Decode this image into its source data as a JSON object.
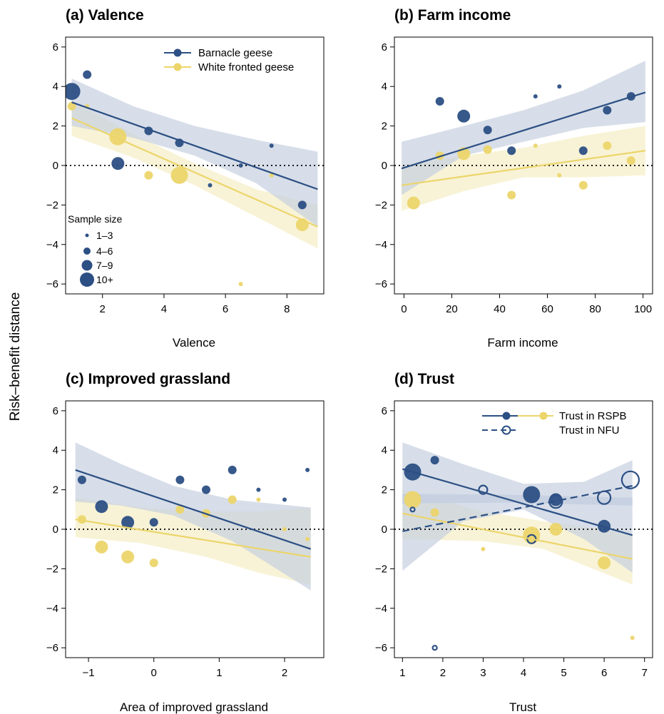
{
  "figure": {
    "shared_ylabel": "Risk–benefit distance",
    "colors": {
      "barnacle": "#2c4f84",
      "white_fronted": "#ecd56b",
      "barnacle_band": "#c6d0e0",
      "white_band": "#f7f1cf"
    },
    "size_legend": {
      "title": "Sample size",
      "labels": [
        "1–3",
        "4–6",
        "7–9",
        "10+"
      ]
    },
    "legend_a": {
      "barnacle": "Barnacle geese",
      "white": "White fronted geese"
    },
    "legend_d": {
      "rspb": "Trust in RSPB",
      "nfu": "Trust in NFU"
    }
  },
  "chart_data": [
    {
      "id": "a",
      "type": "scatter",
      "title": "(a) Valence",
      "xlabel": "Valence",
      "ylabel": "Risk–benefit distance",
      "xlim": [
        0.8,
        9.2
      ],
      "ylim": [
        -6.5,
        6.5
      ],
      "xticks": [
        2,
        4,
        6,
        8
      ],
      "yticks": [
        -6,
        -4,
        -2,
        0,
        2,
        4,
        6
      ],
      "reference_line": 0,
      "legend_position": "top-right",
      "series": [
        {
          "name": "Barnacle geese",
          "color": "barnacle",
          "points": [
            [
              1.0,
              3.75,
              4
            ],
            [
              1.5,
              4.6,
              2
            ],
            [
              2.5,
              0.1,
              3
            ],
            [
              3.5,
              1.75,
              2
            ],
            [
              4.5,
              1.15,
              2
            ],
            [
              5.5,
              -1.0,
              1
            ],
            [
              6.5,
              0.0,
              1
            ],
            [
              7.5,
              1.0,
              1
            ],
            [
              8.5,
              -2.0,
              2
            ]
          ],
          "fit": {
            "x": [
              1.0,
              9.0
            ],
            "y": [
              3.2,
              -1.2
            ]
          },
          "band": [
            [
              1.0,
              4.4,
              2.0
            ],
            [
              3.0,
              3.0,
              1.4
            ],
            [
              5.0,
              2.0,
              0.5
            ],
            [
              7.0,
              1.3,
              -0.9
            ],
            [
              9.0,
              0.7,
              -3.1
            ]
          ]
        },
        {
          "name": "White fronted geese",
          "color": "white_fronted",
          "points": [
            [
              1.0,
              3.0,
              2
            ],
            [
              1.5,
              3.0,
              1
            ],
            [
              2.5,
              1.45,
              4
            ],
            [
              3.5,
              -0.5,
              2
            ],
            [
              4.5,
              -0.5,
              4
            ],
            [
              6.5,
              -6.0,
              1
            ],
            [
              7.5,
              -0.5,
              1
            ],
            [
              8.5,
              -3.0,
              3
            ]
          ],
          "fit": {
            "x": [
              1.0,
              9.0
            ],
            "y": [
              2.4,
              -3.1
            ]
          },
          "band": [
            [
              1.0,
              3.3,
              1.5
            ],
            [
              3.0,
              1.6,
              0.4
            ],
            [
              5.0,
              0.1,
              -1.0
            ],
            [
              7.0,
              -1.2,
              -2.6
            ],
            [
              9.0,
              -2.0,
              -4.2
            ]
          ]
        }
      ]
    },
    {
      "id": "b",
      "type": "scatter",
      "title": "(b) Farm income",
      "xlabel": "Farm income",
      "ylabel": "",
      "xlim": [
        -4,
        104
      ],
      "ylim": [
        -6.5,
        6.5
      ],
      "xticks": [
        0,
        20,
        40,
        60,
        80,
        100
      ],
      "yticks": [
        -6,
        -4,
        -2,
        0,
        2,
        4,
        6
      ],
      "reference_line": 0,
      "series": [
        {
          "name": "Barnacle geese",
          "color": "barnacle",
          "points": [
            [
              15,
              3.25,
              2
            ],
            [
              25,
              2.5,
              3
            ],
            [
              35,
              1.8,
              2
            ],
            [
              45,
              0.75,
              2
            ],
            [
              55,
              3.5,
              1
            ],
            [
              65,
              4.0,
              1
            ],
            [
              75,
              0.75,
              2
            ],
            [
              85,
              2.8,
              2
            ],
            [
              95,
              3.5,
              2
            ]
          ],
          "fit": {
            "x": [
              -1,
              101
            ],
            "y": [
              -0.15,
              3.7
            ]
          },
          "band": [
            [
              -1,
              1.2,
              -1.5
            ],
            [
              25,
              2.0,
              0.5
            ],
            [
              50,
              2.8,
              1.2
            ],
            [
              75,
              3.8,
              1.9
            ],
            [
              101,
              5.3,
              2.2
            ]
          ]
        },
        {
          "name": "White fronted geese",
          "color": "white_fronted",
          "points": [
            [
              4,
              -1.9,
              3
            ],
            [
              15,
              0.5,
              2
            ],
            [
              25,
              0.6,
              3
            ],
            [
              35,
              0.8,
              2
            ],
            [
              45,
              -1.5,
              2
            ],
            [
              55,
              1.0,
              1
            ],
            [
              65,
              -0.5,
              1
            ],
            [
              75,
              -1.0,
              2
            ],
            [
              85,
              1.0,
              2
            ],
            [
              95,
              0.25,
              2
            ]
          ],
          "fit": {
            "x": [
              -1,
              101
            ],
            "y": [
              -1.0,
              0.75
            ]
          },
          "band": [
            [
              -1,
              0.0,
              -2.3
            ],
            [
              25,
              0.5,
              -1.3
            ],
            [
              50,
              0.9,
              -0.6
            ],
            [
              75,
              1.5,
              -0.6
            ],
            [
              101,
              2.0,
              -0.5
            ]
          ]
        }
      ]
    },
    {
      "id": "c",
      "type": "scatter",
      "title": "(c) Improved grassland",
      "xlabel": "Area of improved grassland",
      "ylabel": "",
      "xlim": [
        -1.35,
        2.6
      ],
      "ylim": [
        -6.5,
        6.5
      ],
      "xticks": [
        -1,
        0,
        1,
        2
      ],
      "yticks": [
        -6,
        -4,
        -2,
        0,
        2,
        4,
        6
      ],
      "reference_line": 0,
      "series": [
        {
          "name": "Barnacle geese",
          "color": "barnacle",
          "points": [
            [
              -1.1,
              2.5,
              2
            ],
            [
              -0.8,
              1.15,
              3
            ],
            [
              -0.4,
              0.35,
              3
            ],
            [
              0.0,
              0.35,
              2
            ],
            [
              0.4,
              2.5,
              2
            ],
            [
              0.8,
              2.0,
              2
            ],
            [
              1.2,
              3.0,
              2
            ],
            [
              1.6,
              2.0,
              1
            ],
            [
              2.0,
              1.5,
              1
            ],
            [
              2.35,
              3.0,
              1
            ]
          ],
          "fit": {
            "x": [
              -1.2,
              2.4
            ],
            "y": [
              3.0,
              -1.0
            ]
          },
          "band": [
            [
              -1.2,
              4.4,
              1.4
            ],
            [
              -0.5,
              3.3,
              1.2
            ],
            [
              0.3,
              2.2,
              0.7
            ],
            [
              1.2,
              1.5,
              -0.6
            ],
            [
              2.4,
              1.1,
              -3.1
            ]
          ]
        },
        {
          "name": "White fronted geese",
          "color": "white_fronted",
          "points": [
            [
              -1.1,
              0.5,
              2
            ],
            [
              -0.8,
              -0.9,
              3
            ],
            [
              -0.4,
              -1.4,
              3
            ],
            [
              0.0,
              -1.7,
              2
            ],
            [
              0.4,
              1.0,
              2
            ],
            [
              0.8,
              0.8,
              2
            ],
            [
              1.2,
              1.5,
              2
            ],
            [
              1.6,
              1.5,
              1
            ],
            [
              2.0,
              0.0,
              1
            ],
            [
              2.35,
              -0.5,
              1
            ]
          ],
          "fit": {
            "x": [
              -1.2,
              2.4
            ],
            "y": [
              0.5,
              -1.4
            ]
          },
          "band": [
            [
              -1.2,
              1.6,
              -0.4
            ],
            [
              -0.2,
              1.1,
              -0.7
            ],
            [
              0.8,
              0.9,
              -1.4
            ],
            [
              1.6,
              0.9,
              -2.2
            ],
            [
              2.4,
              1.1,
              -2.8
            ]
          ]
        }
      ]
    },
    {
      "id": "d",
      "type": "scatter",
      "title": "(d) Trust",
      "xlabel": "Trust",
      "ylabel": "",
      "xlim": [
        0.8,
        7.2
      ],
      "ylim": [
        -6.5,
        6.5
      ],
      "xticks": [
        1,
        2,
        3,
        4,
        5,
        6,
        7
      ],
      "yticks": [
        -6,
        -4,
        -2,
        0,
        2,
        4,
        6
      ],
      "reference_line": 0,
      "legend_position": "top-right",
      "series": [
        {
          "name": "Trust in RSPB",
          "color": "barnacle",
          "points": [
            [
              1.25,
              2.9,
              4
            ],
            [
              1.8,
              3.5,
              2
            ],
            [
              4.2,
              1.75,
              4
            ],
            [
              4.8,
              1.5,
              3
            ],
            [
              6.0,
              0.15,
              3
            ]
          ],
          "fit": {
            "x": [
              1.0,
              6.7
            ],
            "y": [
              3.05,
              -0.3
            ]
          },
          "band": [
            [
              1.0,
              4.4,
              -2.1
            ],
            [
              2.5,
              3.3,
              0.4
            ],
            [
              4.0,
              2.3,
              1.0
            ],
            [
              5.5,
              2.4,
              -0.5
            ],
            [
              6.7,
              3.5,
              -2.2
            ]
          ]
        },
        {
          "name": "Trust in NFU",
          "color": "barnacle",
          "open": true,
          "points": [
            [
              1.25,
              1.0,
              1
            ],
            [
              1.8,
              -6.0,
              1
            ],
            [
              3.0,
              2.0,
              2
            ],
            [
              4.2,
              -0.5,
              2
            ],
            [
              4.8,
              1.4,
              3
            ],
            [
              6.0,
              1.6,
              3
            ],
            [
              6.65,
              2.5,
              4
            ]
          ],
          "fit": {
            "x": [
              1.0,
              6.7
            ],
            "y": [
              -0.1,
              2.2
            ]
          },
          "band": [
            [
              1.0,
              1.8,
              1.3
            ],
            [
              3.5,
              1.75,
              1.35
            ],
            [
              6.7,
              1.6,
              1.2
            ]
          ]
        },
        {
          "name": "",
          "color": "white_fronted",
          "points": [
            [
              1.25,
              1.5,
              4
            ],
            [
              1.8,
              0.85,
              2
            ],
            [
              3.0,
              -1.0,
              1
            ],
            [
              4.2,
              -0.3,
              4
            ],
            [
              4.8,
              0.0,
              3
            ],
            [
              6.0,
              -1.7,
              3
            ],
            [
              6.7,
              -5.5,
              1
            ]
          ],
          "fit": {
            "x": [
              1.0,
              6.7
            ],
            "y": [
              0.8,
              -1.5
            ]
          },
          "band": [
            [
              1.0,
              2.0,
              -0.5
            ],
            [
              3.0,
              0.9,
              -0.6
            ],
            [
              4.5,
              0.4,
              -1.0
            ],
            [
              6.7,
              -0.2,
              -2.8
            ]
          ]
        }
      ]
    }
  ]
}
